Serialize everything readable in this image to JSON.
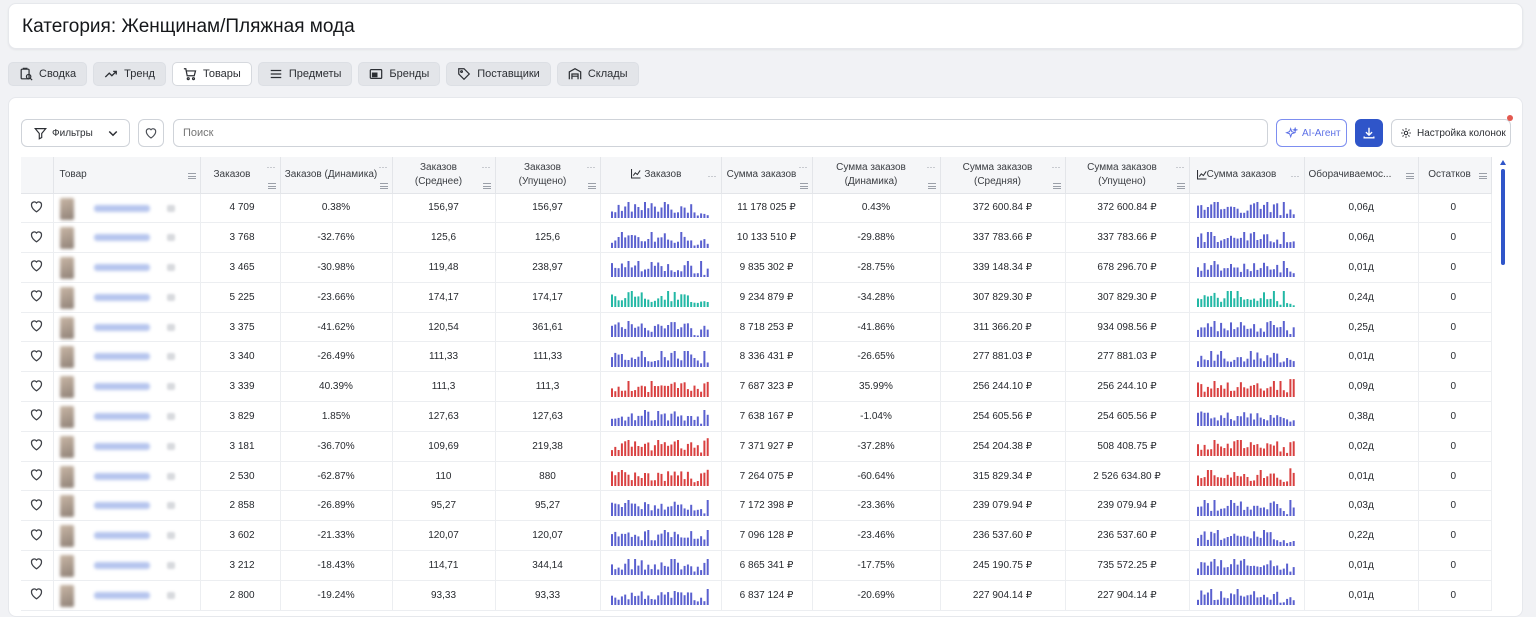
{
  "page": {
    "title": "Категория: Женщинам/Пляжная мода"
  },
  "tabs": [
    {
      "label": "Сводка",
      "icon": "summary-icon",
      "active": false
    },
    {
      "label": "Тренд",
      "icon": "trend-icon",
      "active": false
    },
    {
      "label": "Товары",
      "icon": "cart-icon",
      "active": true
    },
    {
      "label": "Предметы",
      "icon": "list-icon",
      "active": false
    },
    {
      "label": "Бренды",
      "icon": "brand-icon",
      "active": false
    },
    {
      "label": "Поставщики",
      "icon": "tag-icon",
      "active": false
    },
    {
      "label": "Склады",
      "icon": "warehouse-icon",
      "active": false
    }
  ],
  "toolbar": {
    "filters_label": "Фильтры",
    "search_placeholder": "Поиск",
    "ai_label": "AI-Агент",
    "columns_label": "Настройка колонок"
  },
  "colors": {
    "blue": "#5a60cf",
    "teal": "#23b8a5",
    "red": "#d94040"
  },
  "table": {
    "columns": [
      {
        "key": "product",
        "label": "Товар"
      },
      {
        "key": "orders",
        "label": "Заказов"
      },
      {
        "key": "orders_dyn",
        "label": "Заказов (Динамика)"
      },
      {
        "key": "orders_avg",
        "label": "Заказов (Среднее)"
      },
      {
        "key": "orders_lost",
        "label": "Заказов (Упущено)"
      },
      {
        "key": "orders_chart",
        "label": "Заказов"
      },
      {
        "key": "sum",
        "label": "Сумма заказов"
      },
      {
        "key": "sum_dyn",
        "label": "Сумма заказов (Динамика)"
      },
      {
        "key": "sum_avg",
        "label": "Сумма заказов (Средняя)"
      },
      {
        "key": "sum_lost",
        "label": "Сумма заказов (Упущено)"
      },
      {
        "key": "sum_chart",
        "label": "Сумма заказов"
      },
      {
        "key": "turnover",
        "label": "Оборачиваемос..."
      },
      {
        "key": "stock",
        "label": "Остатков"
      }
    ],
    "rows": [
      {
        "orders": "4 709",
        "orders_dyn": "0.38%",
        "orders_avg": "156,97",
        "orders_lost": "156,97",
        "sum": "11 178 025 ₽",
        "sum_dyn": "0.43%",
        "sum_avg": "372 600.84 ₽",
        "sum_lost": "372 600.84 ₽",
        "turnover": "0,06д",
        "stock": "0",
        "color": "blue"
      },
      {
        "orders": "3 768",
        "orders_dyn": "-32.76%",
        "orders_avg": "125,6",
        "orders_lost": "125,6",
        "sum": "10 133 510 ₽",
        "sum_dyn": "-29.88%",
        "sum_avg": "337 783.66 ₽",
        "sum_lost": "337 783.66 ₽",
        "turnover": "0,06д",
        "stock": "0",
        "color": "blue"
      },
      {
        "orders": "3 465",
        "orders_dyn": "-30.98%",
        "orders_avg": "119,48",
        "orders_lost": "238,97",
        "sum": "9 835 302 ₽",
        "sum_dyn": "-28.75%",
        "sum_avg": "339 148.34 ₽",
        "sum_lost": "678 296.70 ₽",
        "turnover": "0,01д",
        "stock": "0",
        "color": "blue"
      },
      {
        "orders": "5 225",
        "orders_dyn": "-23.66%",
        "orders_avg": "174,17",
        "orders_lost": "174,17",
        "sum": "9 234 879 ₽",
        "sum_dyn": "-34.28%",
        "sum_avg": "307 829.30 ₽",
        "sum_lost": "307 829.30 ₽",
        "turnover": "0,24д",
        "stock": "0",
        "color": "teal"
      },
      {
        "orders": "3 375",
        "orders_dyn": "-41.62%",
        "orders_avg": "120,54",
        "orders_lost": "361,61",
        "sum": "8 718 253 ₽",
        "sum_dyn": "-41.86%",
        "sum_avg": "311 366.20 ₽",
        "sum_lost": "934 098.56 ₽",
        "turnover": "0,25д",
        "stock": "0",
        "color": "blue"
      },
      {
        "orders": "3 340",
        "orders_dyn": "-26.49%",
        "orders_avg": "111,33",
        "orders_lost": "111,33",
        "sum": "8 336 431 ₽",
        "sum_dyn": "-26.65%",
        "sum_avg": "277 881.03 ₽",
        "sum_lost": "277 881.03 ₽",
        "turnover": "0,01д",
        "stock": "0",
        "color": "blue"
      },
      {
        "orders": "3 339",
        "orders_dyn": "40.39%",
        "orders_avg": "111,3",
        "orders_lost": "111,3",
        "sum": "7 687 323 ₽",
        "sum_dyn": "35.99%",
        "sum_avg": "256 244.10 ₽",
        "sum_lost": "256 244.10 ₽",
        "turnover": "0,09д",
        "stock": "0",
        "color": "red"
      },
      {
        "orders": "3 829",
        "orders_dyn": "1.85%",
        "orders_avg": "127,63",
        "orders_lost": "127,63",
        "sum": "7 638 167 ₽",
        "sum_dyn": "-1.04%",
        "sum_avg": "254 605.56 ₽",
        "sum_lost": "254 605.56 ₽",
        "turnover": "0,38д",
        "stock": "0",
        "color": "blue"
      },
      {
        "orders": "3 181",
        "orders_dyn": "-36.70%",
        "orders_avg": "109,69",
        "orders_lost": "219,38",
        "sum": "7 371 927 ₽",
        "sum_dyn": "-37.28%",
        "sum_avg": "254 204.38 ₽",
        "sum_lost": "508 408.75 ₽",
        "turnover": "0,02д",
        "stock": "0",
        "color": "red"
      },
      {
        "orders": "2 530",
        "orders_dyn": "-62.87%",
        "orders_avg": "110",
        "orders_lost": "880",
        "sum": "7 264 075 ₽",
        "sum_dyn": "-60.64%",
        "sum_avg": "315 829.34 ₽",
        "sum_lost": "2 526 634.80 ₽",
        "turnover": "0,01д",
        "stock": "0",
        "color": "red"
      },
      {
        "orders": "2 858",
        "orders_dyn": "-26.89%",
        "orders_avg": "95,27",
        "orders_lost": "95,27",
        "sum": "7 172 398 ₽",
        "sum_dyn": "-23.36%",
        "sum_avg": "239 079.94 ₽",
        "sum_lost": "239 079.94 ₽",
        "turnover": "0,03д",
        "stock": "0",
        "color": "blue"
      },
      {
        "orders": "3 602",
        "orders_dyn": "-21.33%",
        "orders_avg": "120,07",
        "orders_lost": "120,07",
        "sum": "7 096 128 ₽",
        "sum_dyn": "-23.46%",
        "sum_avg": "236 537.60 ₽",
        "sum_lost": "236 537.60 ₽",
        "turnover": "0,22д",
        "stock": "0",
        "color": "blue"
      },
      {
        "orders": "3 212",
        "orders_dyn": "-18.43%",
        "orders_avg": "114,71",
        "orders_lost": "344,14",
        "sum": "6 865 341 ₽",
        "sum_dyn": "-17.75%",
        "sum_avg": "245 190.75 ₽",
        "sum_lost": "735 572.25 ₽",
        "turnover": "0,01д",
        "stock": "0",
        "color": "blue"
      },
      {
        "orders": "2 800",
        "orders_dyn": "-19.24%",
        "orders_avg": "93,33",
        "orders_lost": "93,33",
        "sum": "6 837 124 ₽",
        "sum_dyn": "-20.69%",
        "sum_avg": "227 904.14 ₽",
        "sum_lost": "227 904.14 ₽",
        "turnover": "0,01д",
        "stock": "0",
        "color": "blue"
      }
    ]
  }
}
